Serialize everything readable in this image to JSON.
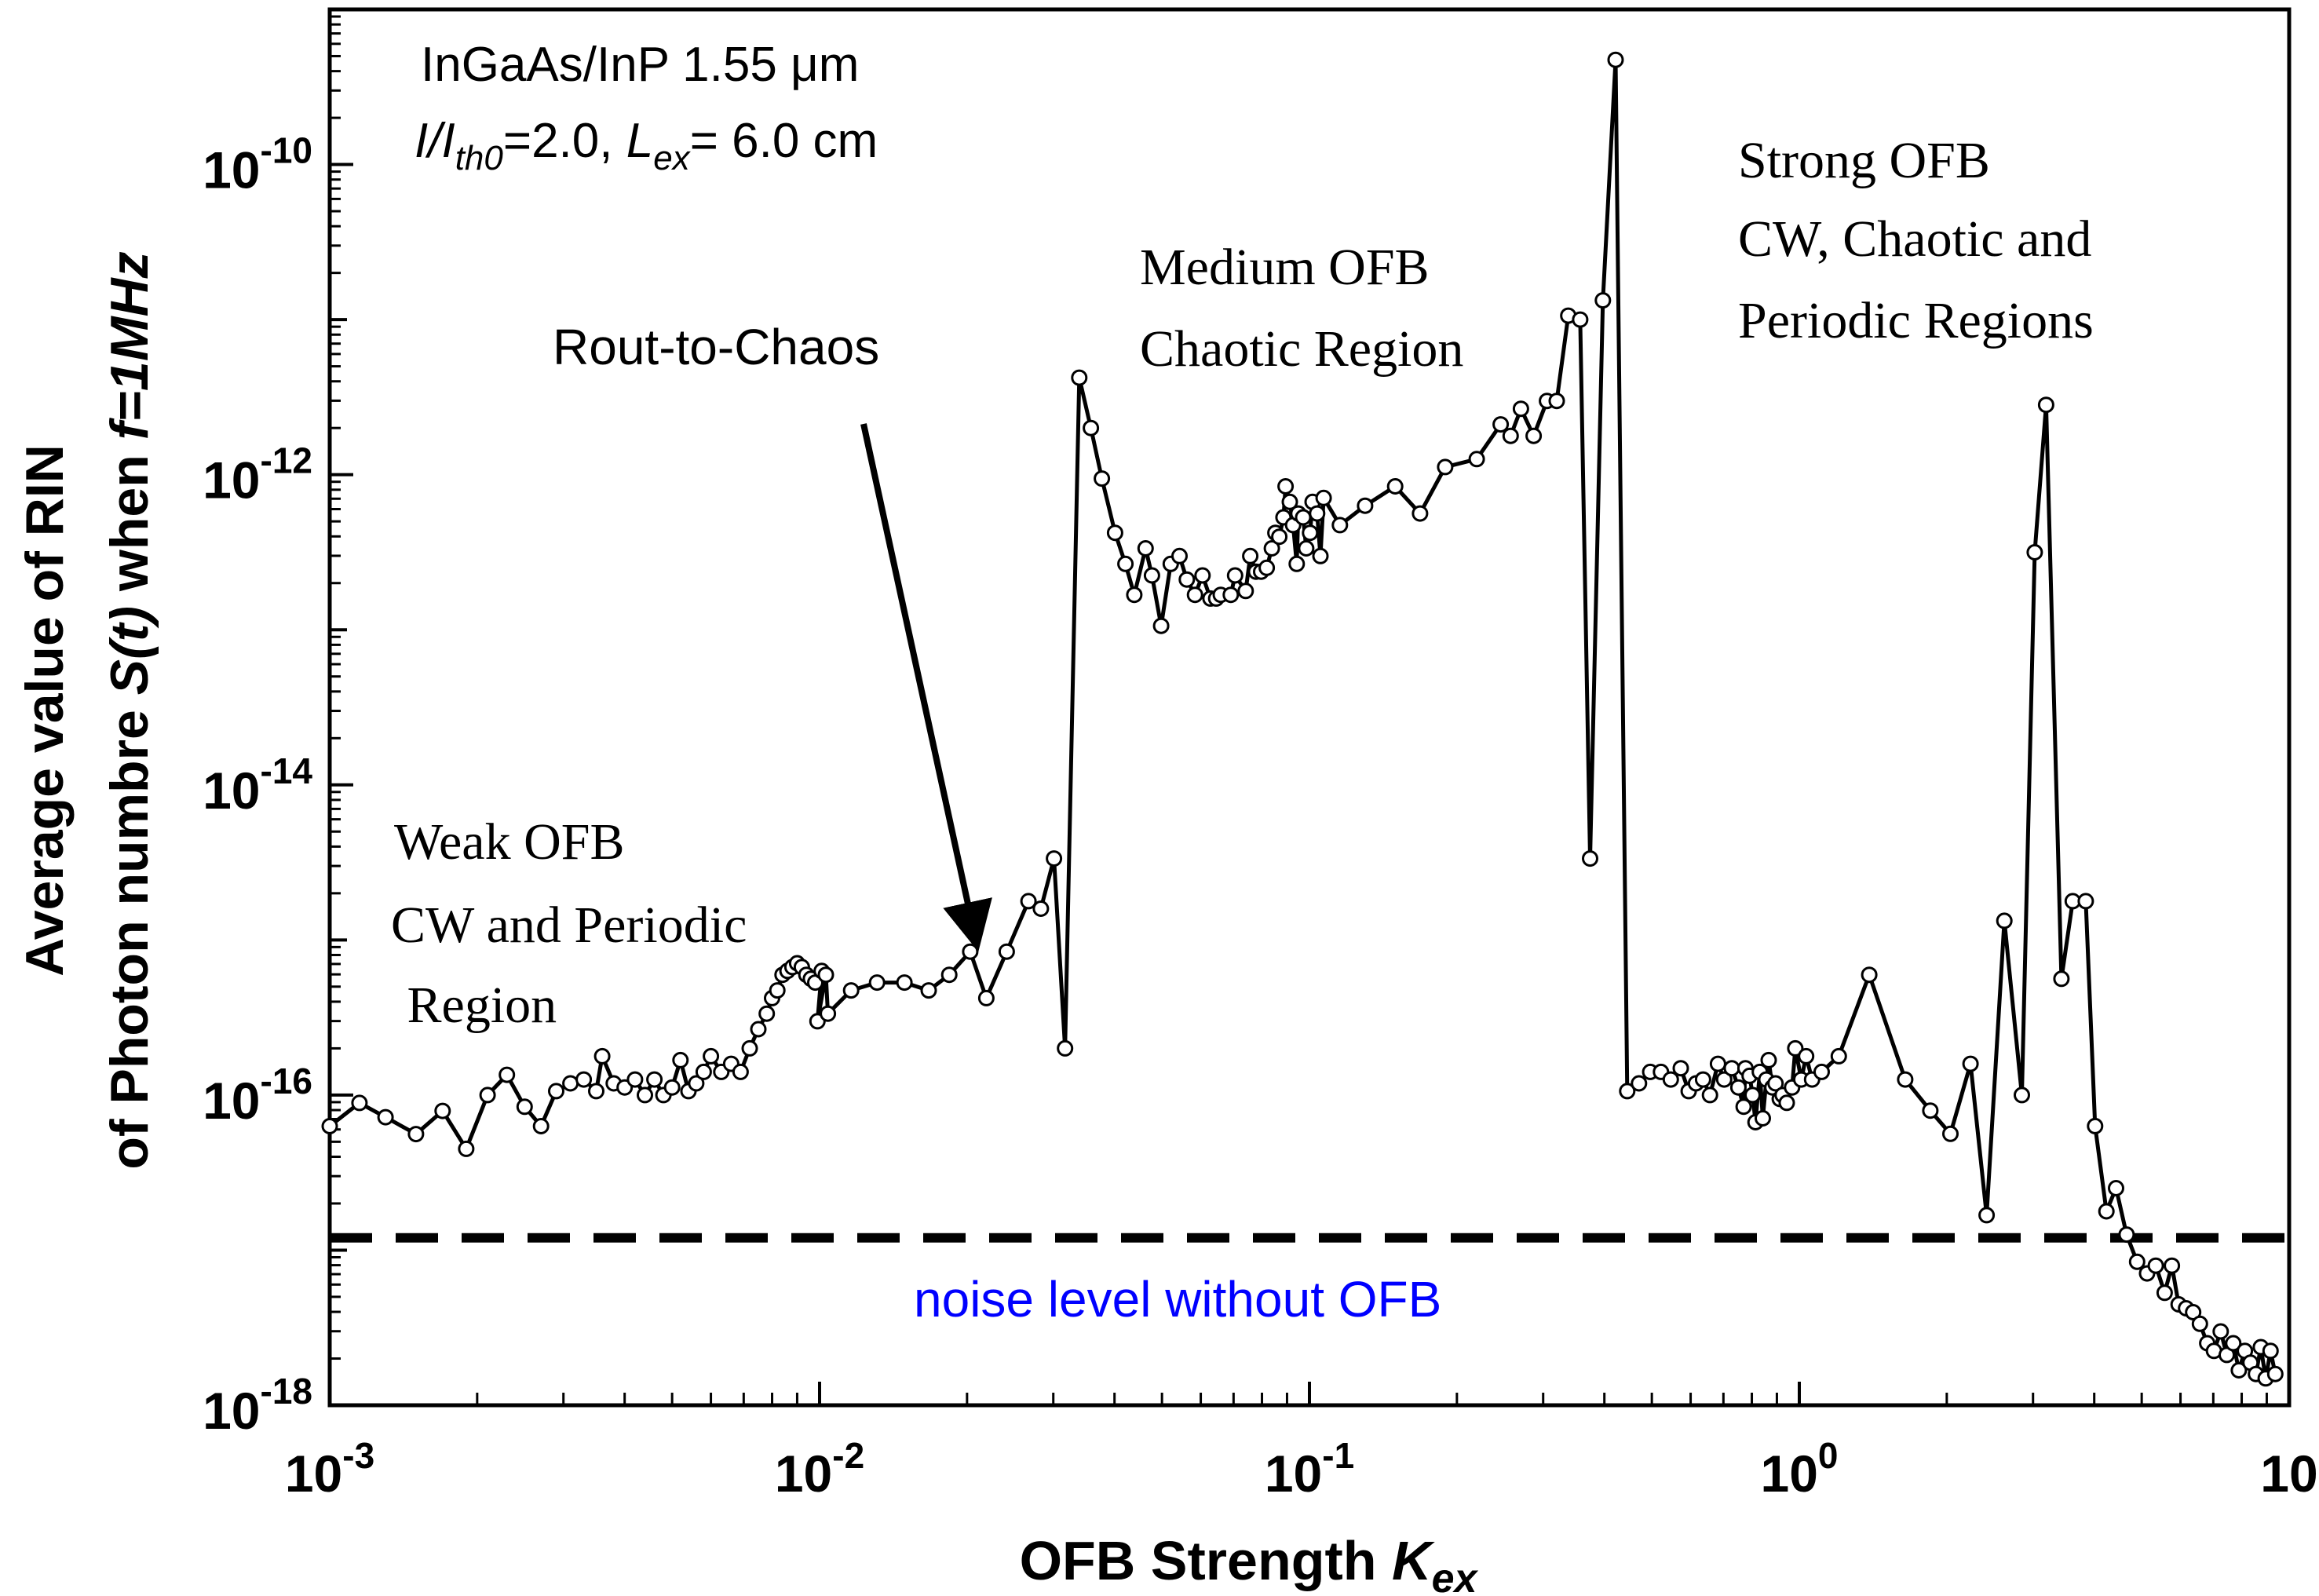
{
  "chart_data": {
    "type": "line",
    "x_scale": "log",
    "y_scale": "log",
    "xlim": [
      0.001,
      10
    ],
    "ylim": [
      1e-18,
      1e-09
    ],
    "xlabel": {
      "main": "OFB Strength ",
      "var": "K",
      "sub": "ex"
    },
    "ylabel": {
      "line1": "Average value of RIN",
      "line2_pre": "of Photon numbre ",
      "line2_var": "S(t)",
      "line2_mid": " when ",
      "line2_cond": "f=1MHz"
    },
    "x_ticks": [
      {
        "value": 0.001,
        "base": "10",
        "exp": "-3"
      },
      {
        "value": 0.01,
        "base": "10",
        "exp": "-2"
      },
      {
        "value": 0.1,
        "base": "10",
        "exp": "-1"
      },
      {
        "value": 1,
        "base": "10",
        "exp": "0"
      },
      {
        "value": 10,
        "base": "10",
        "exp": ""
      }
    ],
    "y_ticks": [
      {
        "value": 1e-18,
        "base": "10",
        "exp": "-18"
      },
      {
        "value": 1e-16,
        "base": "10",
        "exp": "-16"
      },
      {
        "value": 1e-14,
        "base": "10",
        "exp": "-14"
      },
      {
        "value": 1e-12,
        "base": "10",
        "exp": "-12"
      },
      {
        "value": 1e-10,
        "base": "10",
        "exp": "-10"
      }
    ],
    "series": [
      {
        "name": "RIN",
        "color": "#000000",
        "points": [
          [
            0.001,
            6.3e-17
          ],
          [
            0.00115,
            8.9e-17
          ],
          [
            0.0013,
            7.2e-17
          ],
          [
            0.0015,
            5.6e-17
          ],
          [
            0.0017,
            7.9e-17
          ],
          [
            0.0019,
            4.5e-17
          ],
          [
            0.0021,
            1e-16
          ],
          [
            0.0023,
            1.35e-16
          ],
          [
            0.0025,
            8.4e-17
          ],
          [
            0.0027,
            6.3e-17
          ],
          [
            0.0029,
            1.06e-16
          ],
          [
            0.0031,
            1.19e-16
          ],
          [
            0.0033,
            1.26e-16
          ],
          [
            0.0035,
            1.06e-16
          ],
          [
            0.0036,
            1.78e-16
          ],
          [
            0.0038,
            1.19e-16
          ],
          [
            0.004,
            1.12e-16
          ],
          [
            0.0042,
            1.26e-16
          ],
          [
            0.0044,
            1e-16
          ],
          [
            0.0046,
            1.26e-16
          ],
          [
            0.0048,
            1e-16
          ],
          [
            0.005,
            1.12e-16
          ],
          [
            0.0052,
            1.68e-16
          ],
          [
            0.0054,
            1.06e-16
          ],
          [
            0.0056,
            1.19e-16
          ],
          [
            0.0058,
            1.41e-16
          ],
          [
            0.006,
            1.78e-16
          ],
          [
            0.0063,
            1.41e-16
          ],
          [
            0.0066,
            1.59e-16
          ],
          [
            0.0069,
            1.41e-16
          ],
          [
            0.0072,
            2e-16
          ],
          [
            0.0075,
            2.66e-16
          ],
          [
            0.0078,
            3.35e-16
          ],
          [
            0.008,
            4.22e-16
          ],
          [
            0.0082,
            4.73e-16
          ],
          [
            0.0084,
            5.96e-16
          ],
          [
            0.0086,
            6.31e-16
          ],
          [
            0.0088,
            6.68e-16
          ],
          [
            0.009,
            7.08e-16
          ],
          [
            0.0092,
            6.68e-16
          ],
          [
            0.0094,
            5.96e-16
          ],
          [
            0.0096,
            5.62e-16
          ],
          [
            0.0098,
            5.31e-16
          ],
          [
            0.0101,
            6.31e-16
          ],
          [
            0.0099,
            2.99e-16
          ],
          [
            0.0103,
            5.96e-16
          ],
          [
            0.0104,
            3.35e-16
          ],
          [
            0.0116,
            4.73e-16
          ],
          [
            0.0131,
            5.31e-16
          ],
          [
            0.0149,
            5.31e-16
          ],
          [
            0.0167,
            4.73e-16
          ],
          [
            0.0184,
            5.96e-16
          ],
          [
            0.0203,
            8.41e-16
          ],
          [
            0.0219,
            4.22e-16
          ],
          [
            0.0241,
            8.41e-16
          ],
          [
            0.0267,
            1.78e-15
          ],
          [
            0.0283,
            1.59e-15
          ],
          [
            0.0301,
            3.35e-15
          ],
          [
            0.0317,
            2e-16
          ],
          [
            0.0339,
            4.22e-12
          ],
          [
            0.0358,
            2e-12
          ],
          [
            0.0377,
            9.44e-13
          ],
          [
            0.0401,
            4.22e-13
          ],
          [
            0.0421,
            2.66e-13
          ],
          [
            0.0439,
            1.68e-13
          ],
          [
            0.0463,
            3.35e-13
          ],
          [
            0.0477,
            2.24e-13
          ],
          [
            0.0498,
            1.06e-13
          ],
          [
            0.0521,
            2.66e-13
          ],
          [
            0.0543,
            2.99e-13
          ],
          [
            0.0562,
            2.11e-13
          ],
          [
            0.0584,
            1.68e-13
          ],
          [
            0.0605,
            2.24e-13
          ],
          [
            0.0628,
            1.59e-13
          ],
          [
            0.0645,
            1.59e-13
          ],
          [
            0.0659,
            1.68e-13
          ],
          [
            0.0691,
            1.68e-13
          ],
          [
            0.0705,
            2.24e-13
          ],
          [
            0.0741,
            1.78e-13
          ],
          [
            0.0757,
            2.99e-13
          ],
          [
            0.0778,
            2.37e-13
          ],
          [
            0.0797,
            2.37e-13
          ],
          [
            0.0818,
            2.51e-13
          ],
          [
            0.0838,
            3.35e-13
          ],
          [
            0.0852,
            4.22e-13
          ],
          [
            0.0868,
            3.98e-13
          ],
          [
            0.0885,
            5.31e-13
          ],
          [
            0.0894,
            8.41e-13
          ],
          [
            0.0912,
            6.68e-13
          ],
          [
            0.0926,
            4.73e-13
          ],
          [
            0.0942,
            2.66e-13
          ],
          [
            0.0949,
            5.62e-13
          ],
          [
            0.0971,
            5.31e-13
          ],
          [
            0.0985,
            3.35e-13
          ],
          [
            0.1003,
            4.22e-13
          ],
          [
            0.1015,
            6.68e-13
          ],
          [
            0.1037,
            5.62e-13
          ],
          [
            0.1053,
            2.99e-13
          ],
          [
            0.1069,
            7.08e-13
          ],
          [
            0.1154,
            4.73e-13
          ],
          [
            0.1299,
            6.31e-13
          ],
          [
            0.1496,
            8.41e-13
          ],
          [
            0.1682,
            5.62e-13
          ],
          [
            0.1893,
            1.12e-12
          ],
          [
            0.2195,
            1.26e-12
          ],
          [
            0.2457,
            2.11e-12
          ],
          [
            0.2575,
            1.78e-12
          ],
          [
            0.2702,
            2.66e-12
          ],
          [
            0.2869,
            1.78e-12
          ],
          [
            0.3055,
            2.99e-12
          ],
          [
            0.3197,
            2.99e-12
          ],
          [
            0.3376,
            1.06e-11
          ],
          [
            0.3571,
            1e-11
          ],
          [
            0.3741,
            3.35e-15
          ],
          [
            0.3972,
            1.33e-11
          ],
          [
            0.4217,
            4.73e-10
          ],
          [
            0.4454,
            1.06e-16
          ],
          [
            0.4707,
            1.19e-16
          ],
          [
            0.4962,
            1.41e-16
          ],
          [
            0.5219,
            1.41e-16
          ],
          [
            0.5466,
            1.26e-16
          ],
          [
            0.5729,
            1.49e-16
          ],
          [
            0.5946,
            1.06e-16
          ],
          [
            0.6154,
            1.19e-16
          ],
          [
            0.6362,
            1.26e-16
          ],
          [
            0.6571,
            1e-16
          ],
          [
            0.6824,
            1.59e-16
          ],
          [
            0.7025,
            1.26e-16
          ],
          [
            0.7281,
            1.49e-16
          ],
          [
            0.7509,
            1.12e-16
          ],
          [
            0.7697,
            8.41e-17
          ],
          [
            0.7763,
            1.49e-16
          ],
          [
            0.7916,
            1.33e-16
          ],
          [
            0.8028,
            1e-16
          ],
          [
            0.8138,
            6.68e-17
          ],
          [
            0.8305,
            1.41e-16
          ],
          [
            0.8423,
            7.08e-17
          ],
          [
            0.8563,
            1.26e-16
          ],
          [
            0.8661,
            1.68e-16
          ],
          [
            0.8812,
            1.12e-16
          ],
          [
            0.8943,
            1.19e-16
          ],
          [
            0.9122,
            9.44e-17
          ],
          [
            0.9249,
            1e-16
          ],
          [
            0.9425,
            8.91e-17
          ],
          [
            0.9665,
            1.12e-16
          ],
          [
            0.9812,
            2e-16
          ],
          [
            1.0094,
            1.26e-16
          ],
          [
            1.0328,
            1.78e-16
          ],
          [
            1.0621,
            1.26e-16
          ],
          [
            1.1107,
            1.41e-16
          ],
          [
            1.2041,
            1.78e-16
          ],
          [
            1.3891,
            5.96e-16
          ],
          [
            1.6452,
            1.26e-16
          ],
          [
            1.8513,
            7.94e-17
          ],
          [
            2.0345,
            5.62e-17
          ],
          [
            2.2359,
            1.59e-16
          ],
          [
            2.4117,
            1.68e-17
          ],
          [
            2.6221,
            1.33e-15
          ],
          [
            2.8466,
            1e-16
          ],
          [
            3.0244,
            3.16e-13
          ],
          [
            3.1904,
            2.82e-12
          ],
          [
            3.4289,
            5.62e-16
          ],
          [
            3.6152,
            1.78e-15
          ],
          [
            3.8441,
            1.78e-15
          ],
          [
            4.0162,
            6.31e-17
          ],
          [
            4.2354,
            1.78e-17
          ],
          [
            4.4318,
            2.51e-17
          ],
          [
            4.6572,
            1.26e-17
          ],
          [
            4.8924,
            8.41e-18
          ],
          [
            5.1281,
            7.08e-18
          ],
          [
            5.3426,
            7.94e-18
          ],
          [
            5.5689,
            5.31e-18
          ],
          [
            5.7613,
            7.94e-18
          ],
          [
            5.9472,
            4.47e-18
          ],
          [
            6.1592,
            4.22e-18
          ],
          [
            6.3688,
            3.98e-18
          ],
          [
            6.5734,
            3.35e-18
          ],
          [
            6.8021,
            2.51e-18
          ],
          [
            7.0225,
            2.24e-18
          ],
          [
            7.2476,
            2.99e-18
          ],
          [
            7.4566,
            2.11e-18
          ],
          [
            7.6895,
            2.51e-18
          ],
          [
            7.8941,
            1.68e-18
          ],
          [
            8.1214,
            2.24e-18
          ],
          [
            8.3366,
            1.88e-18
          ],
          [
            8.5537,
            1.59e-18
          ],
          [
            8.7521,
            2.37e-18
          ],
          [
            8.9546,
            1.49e-18
          ],
          [
            9.1627,
            2.24e-18
          ],
          [
            9.3681,
            1.59e-18
          ]
        ]
      }
    ],
    "reference_lines": [
      {
        "name": "noise level without OFB",
        "y": 1.2e-17,
        "style": "dashed",
        "color": "#000000",
        "label_color": "#0000ff"
      }
    ],
    "annotations": {
      "device_line1": "InGaAs/InP 1.55 μm",
      "device_line2": {
        "a": "I/I",
        "a_sub": "th0",
        "b": "=2.0, ",
        "c": "L",
        "c_sub": "ex",
        "d": "= 6.0 cm"
      },
      "weak": [
        "Weak OFB",
        "CW and Periodic",
        " Region"
      ],
      "medium": [
        "Medium OFB",
        "Chaotic Region"
      ],
      "strong": [
        "Strong OFB",
        "CW, Chaotic and",
        "Periodic Regions"
      ],
      "route": "Rout-to-Chaos",
      "noise": "noise level without OFB"
    }
  }
}
